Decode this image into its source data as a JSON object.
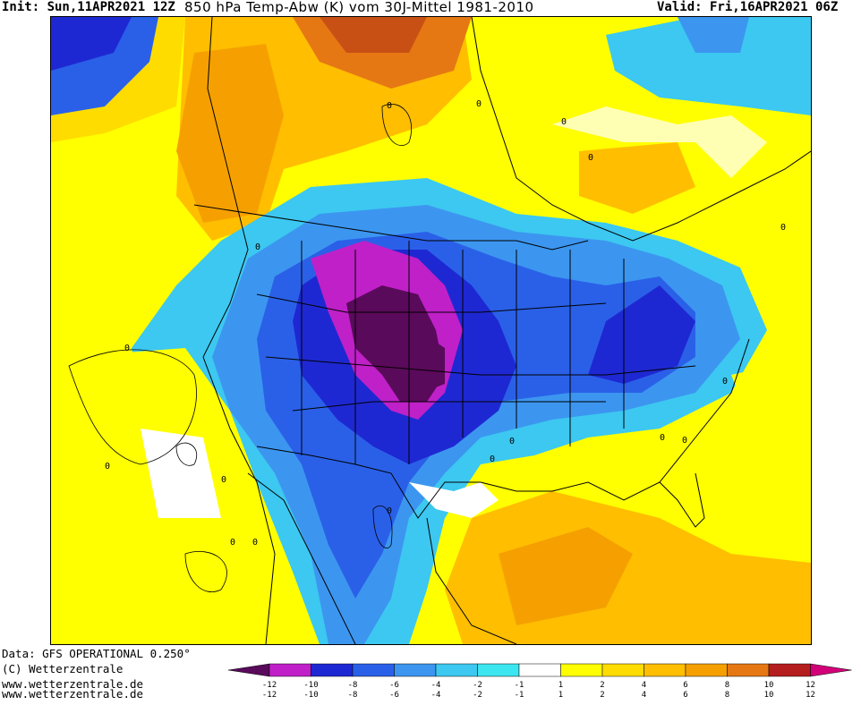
{
  "header": {
    "init": "Init: Sun,11APR2021 12Z",
    "title": "850 hPa Temp-Abw (K) vom 30J-Mittel 1981-2010",
    "valid": "Valid: Fri,16APR2021 06Z"
  },
  "footer": {
    "data_source": "Data: GFS OPERATIONAL 0.250°",
    "copyright": "(C) Wetterzentrale",
    "url1": "www.wetterzentrale.de",
    "url2": "www.wetterzentrale.de"
  },
  "legend": {
    "colors": [
      "#5a0a5a",
      "#c020c8",
      "#1e28d2",
      "#2a60e8",
      "#3c96f0",
      "#3cc8f0",
      "#3ce6f0",
      "#ffffff",
      "#ffff00",
      "#ffdc00",
      "#ffbe00",
      "#f5a000",
      "#e67814",
      "#b41e1e",
      "#d20078"
    ],
    "top_labels": [
      "-12",
      "-10",
      "-8",
      "-6",
      "-4",
      "-2",
      "-1",
      "1",
      "2",
      "4",
      "6",
      "8",
      "10",
      "12"
    ],
    "bottom_labels": [
      "-12",
      "-10",
      "-8",
      "-6",
      "-4",
      "-2",
      "-1",
      "1",
      "2",
      "4",
      "6",
      "8",
      "10",
      "12"
    ]
  },
  "map": {
    "contour_labels": [
      "0",
      "0",
      "0",
      "0",
      "0",
      "0",
      "0",
      "0",
      "0",
      "0",
      "0",
      "0",
      "0",
      "0",
      "0",
      "0",
      "0"
    ]
  }
}
